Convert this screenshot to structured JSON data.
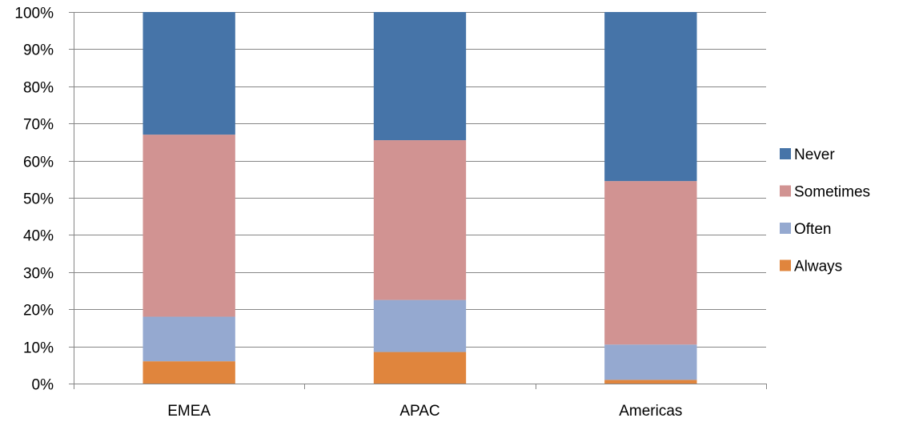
{
  "chart_data": {
    "type": "bar",
    "stacked": true,
    "percent_stacked": true,
    "categories": [
      "EMEA",
      "APAC",
      "Americas"
    ],
    "series": [
      {
        "name": "Always",
        "color": "#E0853D",
        "values": [
          6,
          8.5,
          1
        ]
      },
      {
        "name": "Often",
        "color": "#95A9D0",
        "values": [
          12,
          14,
          9.5
        ]
      },
      {
        "name": "Sometimes",
        "color": "#D19392",
        "values": [
          49,
          43,
          44
        ]
      },
      {
        "name": "Never",
        "color": "#4674A8",
        "values": [
          33,
          34.5,
          45.5
        ]
      }
    ],
    "legend_order": [
      "Never",
      "Sometimes",
      "Often",
      "Always"
    ],
    "ylim": [
      0,
      100
    ],
    "y_ticks": [
      "0%",
      "10%",
      "20%",
      "30%",
      "40%",
      "50%",
      "60%",
      "70%",
      "80%",
      "90%",
      "100%"
    ],
    "grid": true,
    "legend_position": "right",
    "title": "",
    "xlabel": "",
    "ylabel": ""
  }
}
